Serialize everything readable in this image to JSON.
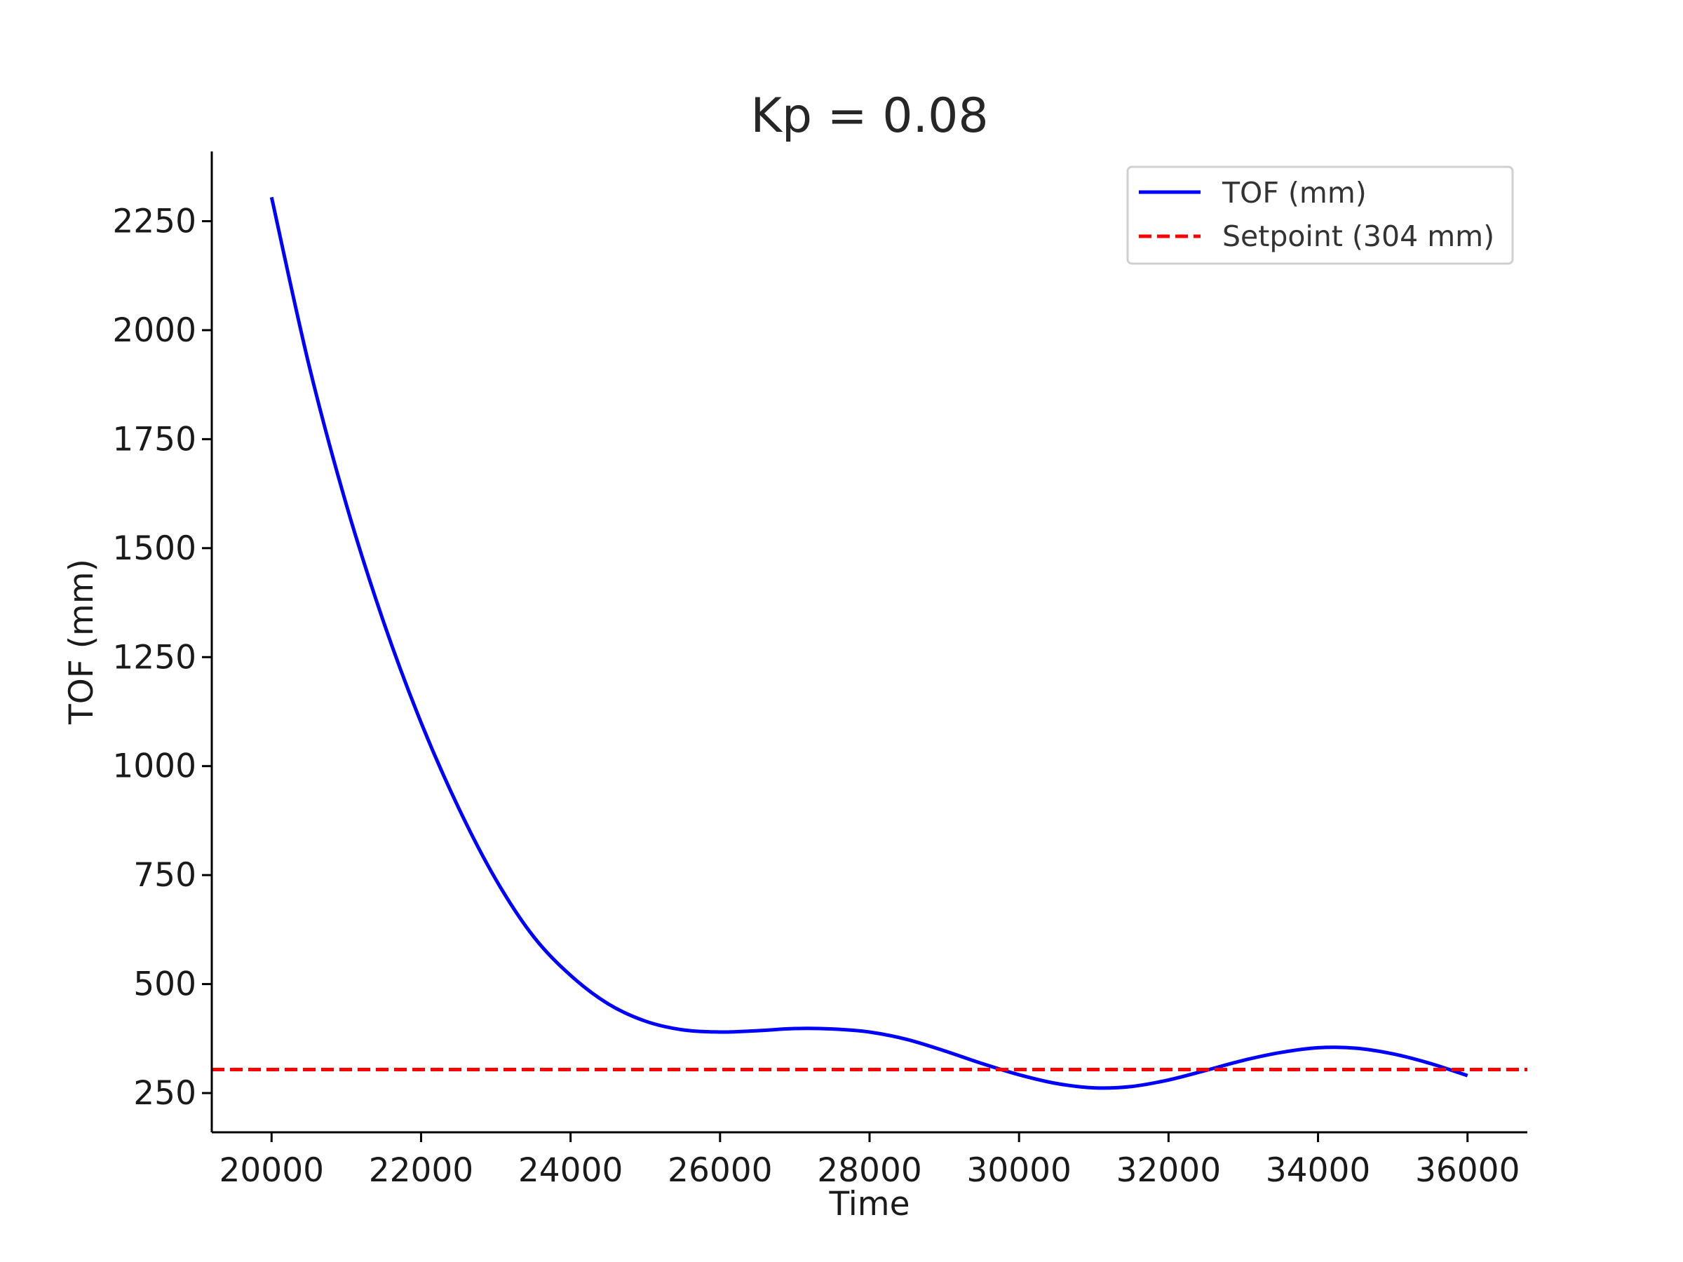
{
  "chart_data": {
    "type": "line",
    "title": "Kp = 0.08",
    "xlabel": "Time",
    "ylabel": "TOF (mm)",
    "xlim": [
      19200,
      36800
    ],
    "ylim": [
      160,
      2410
    ],
    "x_ticks": [
      20000,
      22000,
      24000,
      26000,
      28000,
      30000,
      32000,
      34000,
      36000
    ],
    "y_ticks": [
      250,
      500,
      750,
      1000,
      1250,
      1500,
      1750,
      2000,
      2250
    ],
    "grid": false,
    "legend_position": "top-right",
    "series": [
      {
        "name": "TOF (mm)",
        "style": "solid",
        "color": "#0000ff",
        "x": [
          20000,
          20500,
          21000,
          21500,
          22000,
          22500,
          23000,
          23500,
          24000,
          24500,
          25000,
          25500,
          26000,
          26500,
          27000,
          27500,
          28000,
          28500,
          29000,
          29500,
          30000,
          30500,
          31000,
          31500,
          32000,
          32500,
          33000,
          33500,
          34000,
          34500,
          35000,
          35500,
          36000
        ],
        "values": [
          2305,
          1920,
          1600,
          1330,
          1100,
          905,
          740,
          610,
          520,
          455,
          415,
          395,
          390,
          393,
          398,
          397,
          390,
          373,
          347,
          318,
          292,
          272,
          262,
          265,
          280,
          302,
          325,
          343,
          354,
          353,
          340,
          318,
          290
        ]
      },
      {
        "name": "Setpoint (304 mm)",
        "style": "dashed",
        "color": "#ff0000",
        "x": [
          19200,
          36800
        ],
        "values": [
          304,
          304
        ]
      }
    ]
  }
}
